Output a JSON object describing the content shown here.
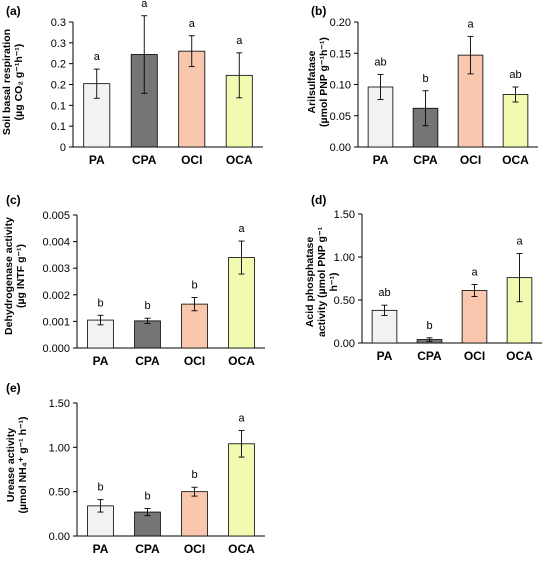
{
  "figure": {
    "category_order": [
      "PA",
      "CPA",
      "OCI",
      "OCA"
    ],
    "bar_colors": [
      "#f2f2f2",
      "#757575",
      "#f8c7ad",
      "#f2f9b1"
    ],
    "bar_stroke": "#000000"
  },
  "chart_data": [
    {
      "type": "bar",
      "panel": "(a)",
      "ylabel_line1": "Soil basal respiration",
      "ylabel_line2": "(µg CO₂ g⁻¹h⁻¹)",
      "categories": [
        "PA",
        "CPA",
        "OCI",
        "OCA"
      ],
      "values": [
        0.152,
        0.222,
        0.23,
        0.172
      ],
      "errors": [
        0.035,
        0.093,
        0.037,
        0.054
      ],
      "letters": [
        "a",
        "a",
        "a",
        "a"
      ],
      "ylim": [
        0,
        0.3
      ],
      "yticks": [
        0,
        0.05,
        0.1,
        0.15,
        0.2,
        0.25,
        0.3
      ],
      "yticklabels": [
        "0",
        "0.1",
        "0.1",
        "0.2",
        "0.2",
        "0.3",
        "0.3"
      ]
    },
    {
      "type": "bar",
      "panel": "(b)",
      "ylabel_line1": "Arilsulfatase",
      "ylabel_line2": "(µmol PNP g⁻¹h⁻¹)",
      "categories": [
        "PA",
        "CPA",
        "OCI",
        "OCA"
      ],
      "values": [
        0.096,
        0.062,
        0.147,
        0.084
      ],
      "errors": [
        0.02,
        0.028,
        0.03,
        0.012
      ],
      "letters": [
        "ab",
        "b",
        "a",
        "ab"
      ],
      "ylim": [
        0,
        0.2
      ],
      "yticks": [
        0,
        0.05,
        0.1,
        0.15,
        0.2
      ],
      "yticklabels": [
        "0.00",
        "0.05",
        "0.10",
        "0.15",
        "0.20"
      ]
    },
    {
      "type": "bar",
      "panel": "(c)",
      "ylabel_line1": "Dehydrogenase activity",
      "ylabel_line2": "(µg INTF g⁻¹)",
      "categories": [
        "PA",
        "CPA",
        "OCI",
        "OCA"
      ],
      "values": [
        0.00105,
        0.00102,
        0.00165,
        0.0034
      ],
      "errors": [
        0.00018,
        0.0001,
        0.00025,
        0.00062
      ],
      "letters": [
        "b",
        "b",
        "b",
        "a"
      ],
      "ylim": [
        0,
        0.005
      ],
      "yticks": [
        0,
        0.001,
        0.002,
        0.003,
        0.004,
        0.005
      ],
      "yticklabels": [
        "0.000",
        "0.001",
        "0.002",
        "0.003",
        "0.004",
        "0.005"
      ]
    },
    {
      "type": "bar",
      "panel": "(d)",
      "ylabel_line1": "Acid phosphatase",
      "ylabel_line2": "activity (µmol PNP g⁻¹",
      "ylabel_line3": "h⁻¹)",
      "categories": [
        "PA",
        "CPA",
        "OCI",
        "OCA"
      ],
      "values": [
        0.38,
        0.04,
        0.61,
        0.76
      ],
      "errors": [
        0.06,
        0.02,
        0.07,
        0.28
      ],
      "letters": [
        "ab",
        "b",
        "a",
        "a"
      ],
      "ylim": [
        0,
        1.5
      ],
      "yticks": [
        0,
        0.5,
        1.0,
        1.5
      ],
      "yticklabels": [
        "0.00",
        "0.50",
        "1.00",
        "1.50"
      ]
    },
    {
      "type": "bar",
      "panel": "(e)",
      "ylabel_line1": "Urease activity",
      "ylabel_line2": "(µmol NH₄⁺ g⁻¹ h⁻¹)",
      "categories": [
        "PA",
        "CPA",
        "OCI",
        "OCA"
      ],
      "values": [
        0.34,
        0.27,
        0.5,
        1.04
      ],
      "errors": [
        0.07,
        0.04,
        0.05,
        0.15
      ],
      "letters": [
        "b",
        "b",
        "b",
        "a"
      ],
      "ylim": [
        0,
        1.5
      ],
      "yticks": [
        0,
        0.5,
        1.0,
        1.5
      ],
      "yticklabels": [
        "0.00",
        "0.50",
        "1.00",
        "1.50"
      ]
    }
  ]
}
